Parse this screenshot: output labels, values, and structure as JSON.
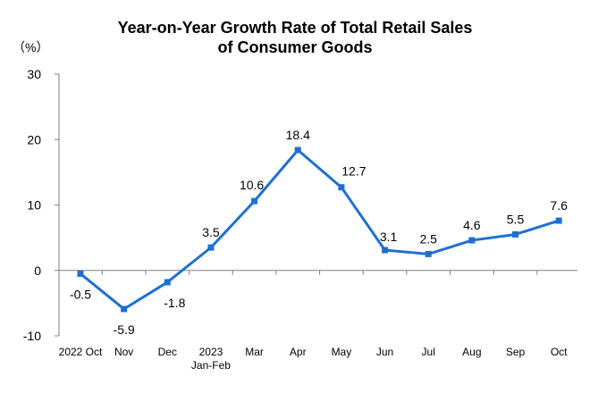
{
  "chart_data": {
    "type": "line",
    "title_lines": [
      "Year-on-Year Growth Rate of Total Retail Sales",
      "of Consumer Goods"
    ],
    "ylabel": "（%）",
    "xlabel": "",
    "ylim": [
      -10,
      30
    ],
    "yticks": [
      -10,
      0,
      10,
      20,
      30
    ],
    "categories": [
      [
        "2022 Oct"
      ],
      [
        "Nov"
      ],
      [
        "Dec"
      ],
      [
        "2023",
        "Jan-Feb"
      ],
      [
        "Mar"
      ],
      [
        "Apr"
      ],
      [
        "May"
      ],
      [
        "Jun"
      ],
      [
        "Jul"
      ],
      [
        "Aug"
      ],
      [
        "Sep"
      ],
      [
        "Oct"
      ]
    ],
    "series": [
      {
        "values": [
          -0.5,
          -5.9,
          -1.8,
          3.5,
          10.6,
          18.4,
          12.7,
          3.1,
          2.5,
          4.6,
          5.5,
          7.6
        ]
      }
    ],
    "data_labels": [
      "-0.5",
      "-5.9",
      "-1.8",
      "3.5",
      "10.6",
      "18.4",
      "12.7",
      "3.1",
      "2.5",
      "4.6",
      "5.5",
      "7.6"
    ],
    "line_color": "#1f6fd1",
    "grid": false,
    "legend": "none"
  }
}
